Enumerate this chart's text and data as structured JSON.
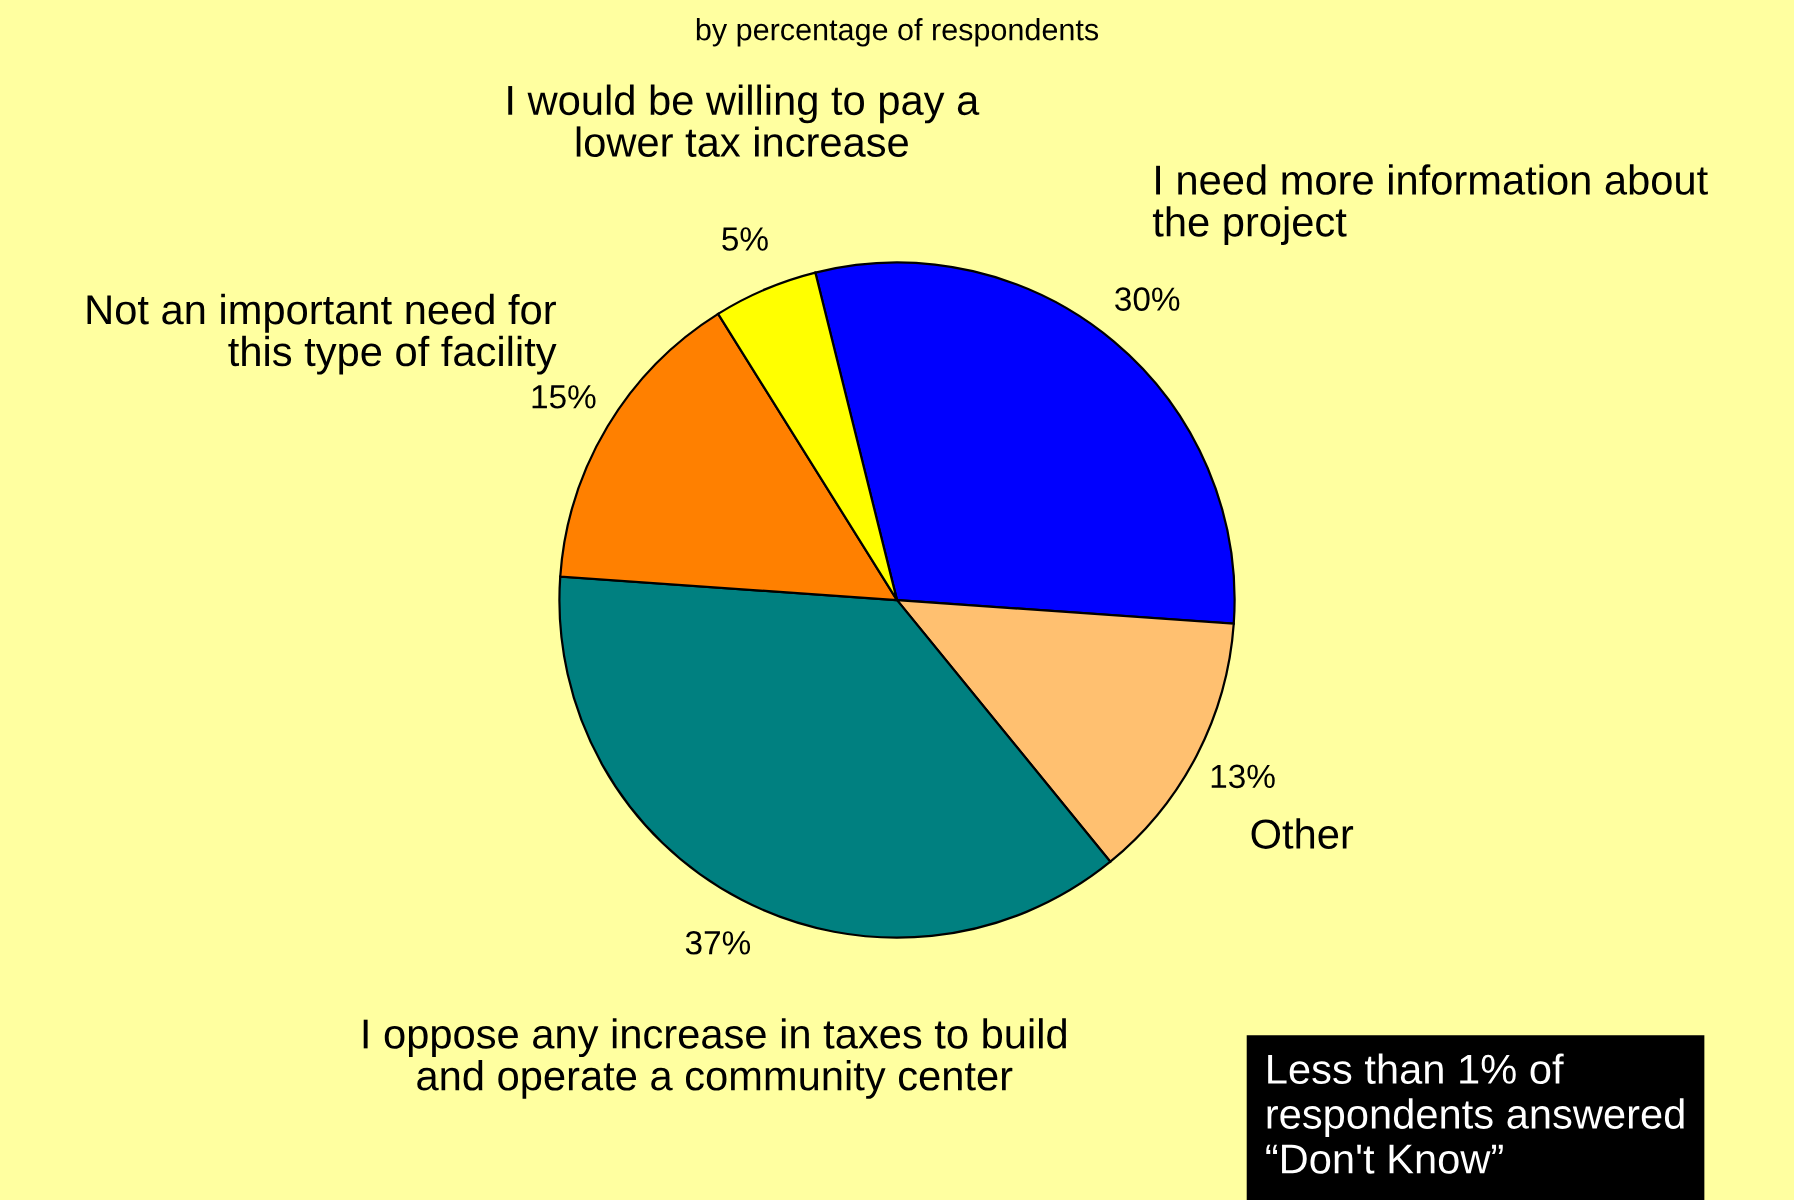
{
  "chart_data": {
    "type": "pie",
    "title": "by percentage of respondents",
    "categories": [
      "I need more information about\nthe project",
      "Other",
      "I oppose any increase in taxes to build\nand operate a community center",
      "Not an important need for\nthis type of facility",
      "I would be willing to pay a\nlower tax increase"
    ],
    "values": [
      30,
      13,
      37,
      15,
      5
    ],
    "colors": [
      "#0000ff",
      "#ffc070",
      "#008080",
      "#ff8000",
      "#ffff00"
    ],
    "value_labels": [
      "30%",
      "13%",
      "37%",
      "15%",
      "5%"
    ],
    "legend": false,
    "annotations": [
      "Less than 1% of\nrespondents answered\n“Don't Know”"
    ]
  }
}
